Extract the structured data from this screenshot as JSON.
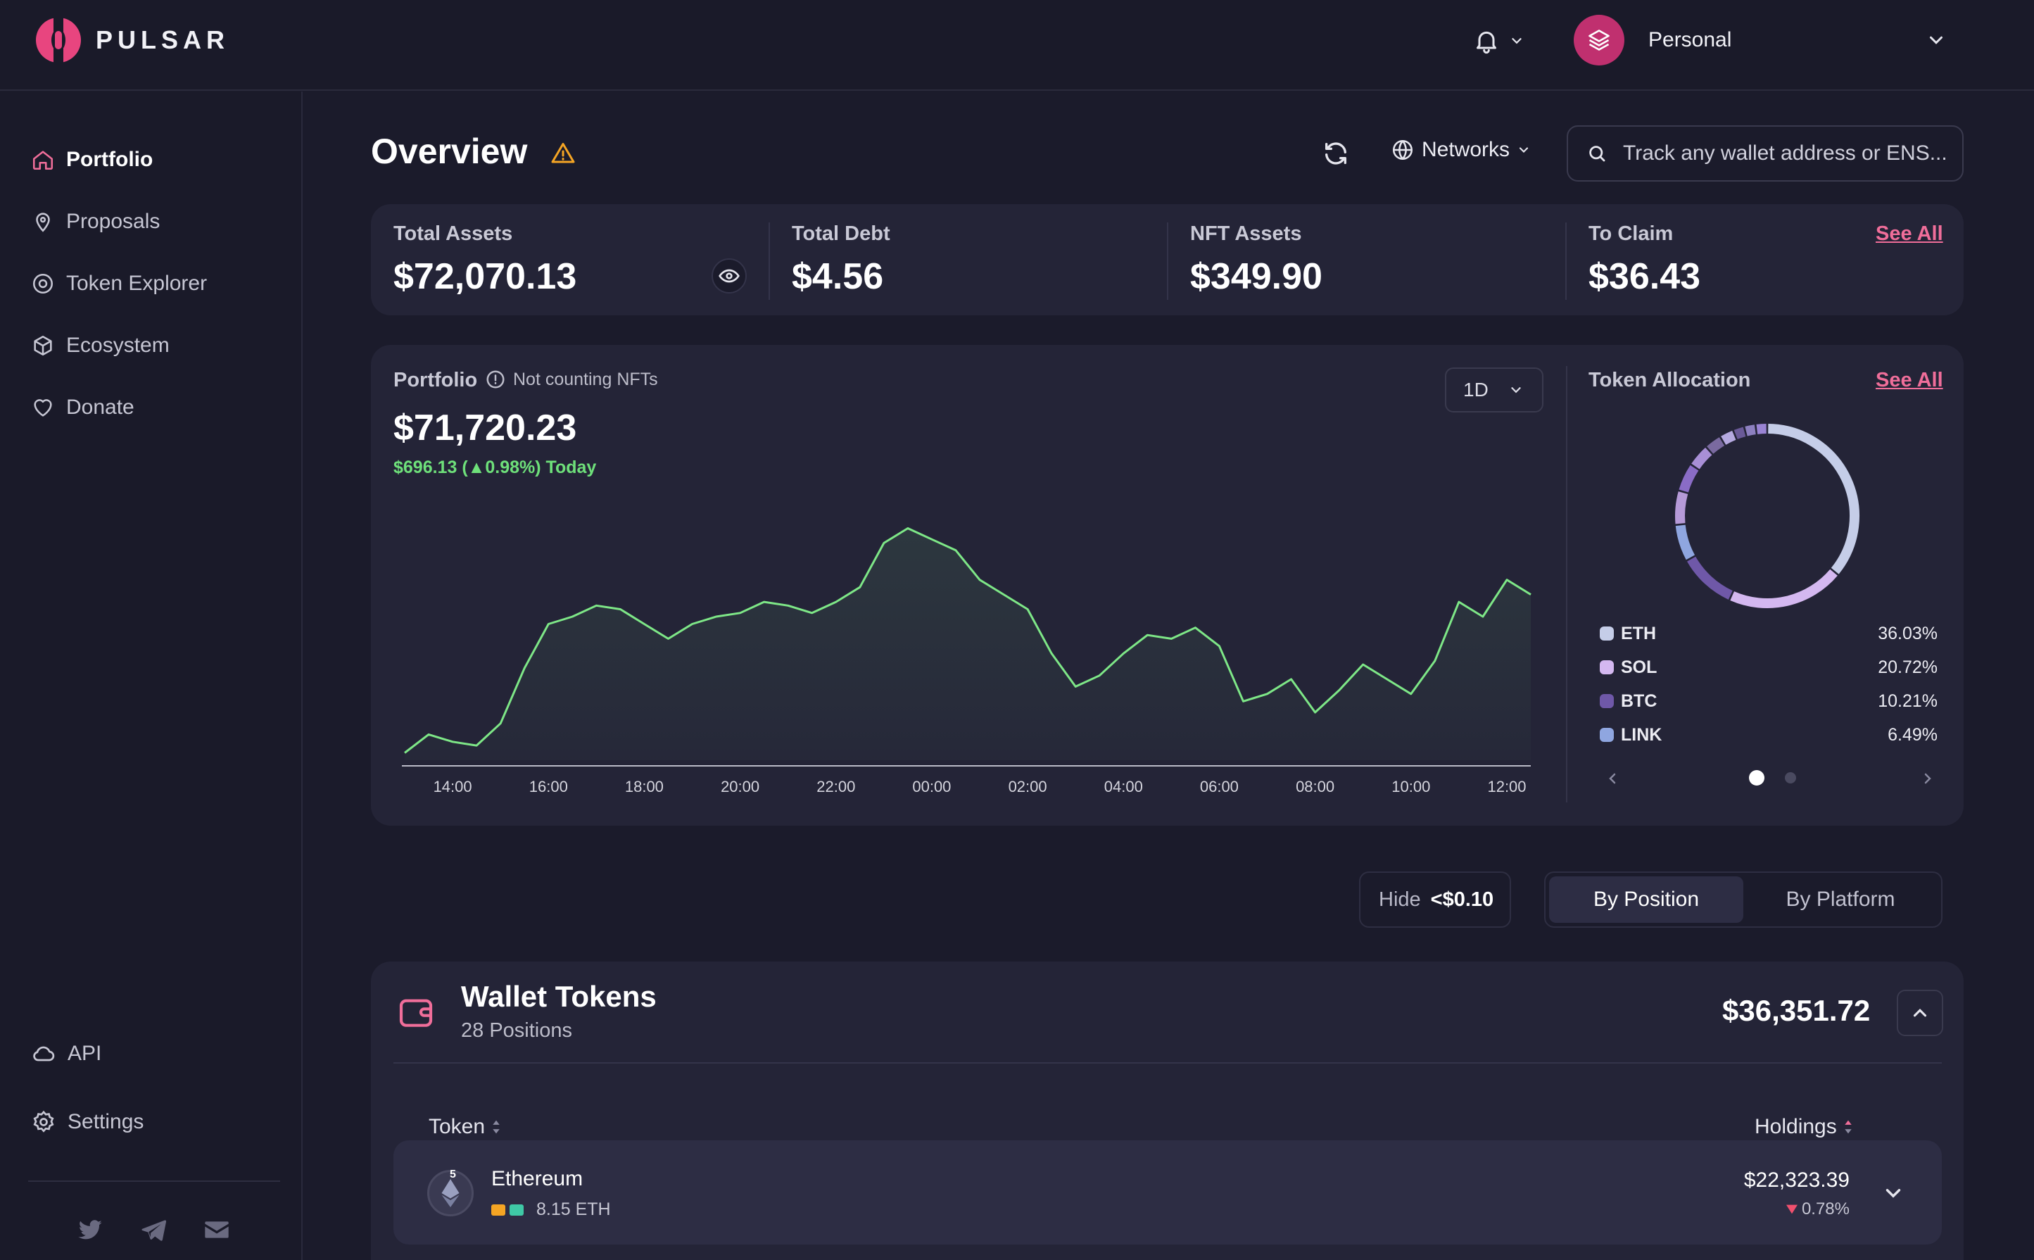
{
  "brand": {
    "name": "PULSAR"
  },
  "header": {
    "account_name": "Personal"
  },
  "sidebar": {
    "items": [
      {
        "label": "Portfolio",
        "icon": "home-icon",
        "active": true
      },
      {
        "label": "Proposals",
        "icon": "location-pin-icon"
      },
      {
        "label": "Token Explorer",
        "icon": "explorer-icon"
      },
      {
        "label": "Ecosystem",
        "icon": "cube-icon"
      },
      {
        "label": "Donate",
        "icon": "heart-icon"
      }
    ],
    "bottom": [
      {
        "label": "API",
        "icon": "cloud-icon"
      },
      {
        "label": "Settings",
        "icon": "gear-icon"
      }
    ],
    "socials": [
      "twitter-icon",
      "telegram-icon",
      "mail-icon"
    ]
  },
  "overview": {
    "title": "Overview",
    "networks_label": "Networks",
    "search_placeholder": "Track any wallet address or ENS..."
  },
  "stats": {
    "total_assets": {
      "label": "Total Assets",
      "value": "$72,070.13"
    },
    "total_debt": {
      "label": "Total Debt",
      "value": "$4.56"
    },
    "nft_assets": {
      "label": "NFT Assets",
      "value": "$349.90"
    },
    "to_claim": {
      "label": "To Claim",
      "value": "$36.43",
      "link": "See All"
    }
  },
  "portfolio": {
    "label": "Portfolio",
    "note": "Not counting NFTs",
    "value": "$71,720.23",
    "change": "$696.13 (▲0.98%) Today",
    "range": "1D"
  },
  "chart_data": {
    "type": "area",
    "x": [
      "13:00",
      "13:30",
      "14:00",
      "14:30",
      "15:00",
      "15:30",
      "16:00",
      "16:30",
      "17:00",
      "17:30",
      "18:00",
      "18:30",
      "19:00",
      "19:30",
      "20:00",
      "20:30",
      "21:00",
      "21:30",
      "22:00",
      "22:30",
      "23:00",
      "23:30",
      "00:00",
      "00:30",
      "01:00",
      "01:30",
      "02:00",
      "02:30",
      "03:00",
      "03:30",
      "04:00",
      "04:30",
      "05:00",
      "05:30",
      "06:00",
      "06:30",
      "07:00",
      "07:30",
      "08:00",
      "08:30",
      "09:00",
      "09:30",
      "10:00",
      "10:30",
      "11:00",
      "11:30",
      "12:00",
      "12:30"
    ],
    "values": [
      71010,
      71060,
      71040,
      71030,
      71090,
      71240,
      71360,
      71380,
      71410,
      71400,
      71360,
      71320,
      71360,
      71380,
      71390,
      71420,
      71410,
      71390,
      71420,
      71460,
      71580,
      71620,
      71590,
      71560,
      71480,
      71440,
      71400,
      71280,
      71190,
      71220,
      71280,
      71330,
      71320,
      71350,
      71300,
      71150,
      71170,
      71210,
      71120,
      71180,
      71250,
      71210,
      71170,
      71260,
      71420,
      71380,
      71480,
      71440
    ],
    "x_ticks": [
      "14:00",
      "16:00",
      "18:00",
      "20:00",
      "22:00",
      "00:00",
      "02:00",
      "04:00",
      "06:00",
      "08:00",
      "10:00",
      "12:00"
    ],
    "line_color": "#7ee787",
    "grid": false
  },
  "allocation": {
    "title": "Token Allocation",
    "link": "See All",
    "tokens": [
      {
        "symbol": "ETH",
        "pct": "36.03%",
        "value": 36.03,
        "color": "#c5cde8"
      },
      {
        "symbol": "SOL",
        "pct": "20.72%",
        "value": 20.72,
        "color": "#d4b8f0"
      },
      {
        "symbol": "BTC",
        "pct": "10.21%",
        "value": 10.21,
        "color": "#6f58a8"
      },
      {
        "symbol": "LINK",
        "pct": "6.49%",
        "value": 6.49,
        "color": "#8fa6e0"
      }
    ],
    "other_segments": [
      6.0,
      5.0,
      4.0,
      3.0,
      2.5,
      2.0,
      2.0,
      2.05
    ],
    "other_colors": [
      "#b69ad8",
      "#8a6cc6",
      "#a88fd6",
      "#7a6aa0",
      "#b5a9e0",
      "#6a5a98",
      "#8d80c0",
      "#9a84d4"
    ]
  },
  "filters": {
    "hide_label": "Hide",
    "hide_value": "<$0.10",
    "segments": [
      "By Position",
      "By Platform"
    ]
  },
  "wallet": {
    "title": "Wallet Tokens",
    "positions": "28 Positions",
    "total": "$36,351.72",
    "columns": [
      "Token",
      "Holdings"
    ],
    "rows": [
      {
        "name": "Ethereum",
        "badge": "5",
        "amount": "8.15 ETH",
        "value": "$22,323.39",
        "change": "0.78%"
      }
    ]
  }
}
